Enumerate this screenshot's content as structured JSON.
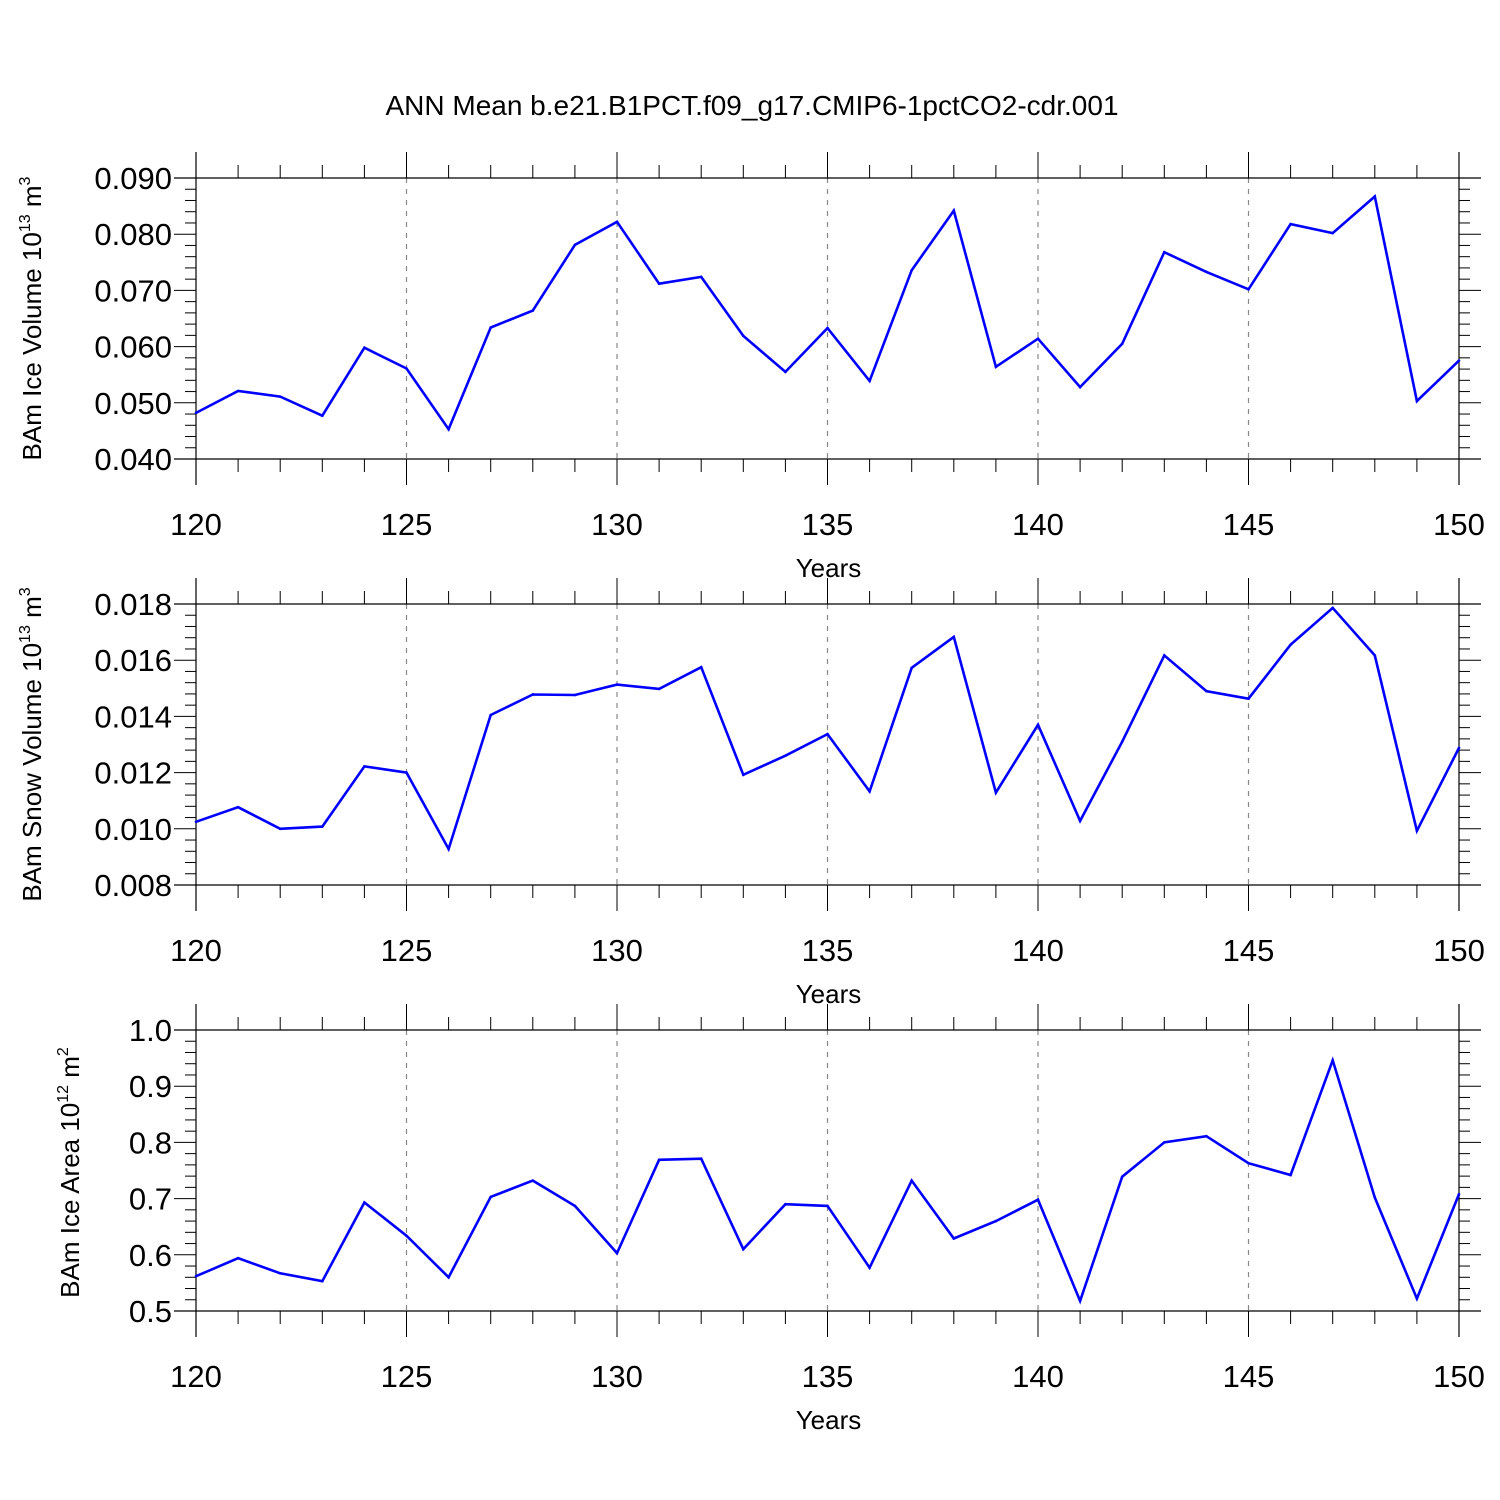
{
  "title": "ANN Mean b.e21.B1PCT.f09_g17.CMIP6-1pctCO2-cdr.001",
  "colors": {
    "series": "#0000ff",
    "axis": "#000000",
    "grid": "#888888"
  },
  "chart_data": [
    {
      "type": "line",
      "ylabel": "BAm Ice Volume 10",
      "ylabel_exp": "13",
      "ylabel_unit": " m",
      "ylabel_unit_exp": "3",
      "xlabel": "Years",
      "xlim": [
        120,
        150
      ],
      "ylim": [
        0.04,
        0.09
      ],
      "x_ticks": [
        120,
        125,
        130,
        135,
        140,
        145,
        150
      ],
      "y_ticks": [
        "0.040",
        "0.050",
        "0.060",
        "0.070",
        "0.080",
        "0.090"
      ],
      "y_tick_values": [
        0.04,
        0.05,
        0.06,
        0.07,
        0.08,
        0.09
      ],
      "y_minor_step": 0.002,
      "x_minor_step": 1,
      "grid": "x-major dashed",
      "x": [
        120,
        121,
        122,
        123,
        124,
        125,
        126,
        127,
        128,
        129,
        130,
        131,
        132,
        133,
        134,
        135,
        136,
        137,
        138,
        139,
        140,
        141,
        142,
        143,
        144,
        145,
        146,
        147,
        148,
        149,
        150
      ],
      "y": [
        0.0482,
        0.0521,
        0.0511,
        0.0477,
        0.0598,
        0.0561,
        0.0453,
        0.0634,
        0.0664,
        0.0781,
        0.0822,
        0.0712,
        0.0724,
        0.0619,
        0.0555,
        0.0633,
        0.0539,
        0.0736,
        0.0842,
        0.0564,
        0.0614,
        0.0528,
        0.0605,
        0.0768,
        0.0733,
        0.0702,
        0.0818,
        0.0802,
        0.0867,
        0.0503,
        0.0575
      ]
    },
    {
      "type": "line",
      "ylabel": "BAm Snow Volume 10",
      "ylabel_exp": "13",
      "ylabel_unit": " m",
      "ylabel_unit_exp": "3",
      "xlabel": "Years",
      "xlim": [
        120,
        150
      ],
      "ylim": [
        0.008,
        0.018
      ],
      "x_ticks": [
        120,
        125,
        130,
        135,
        140,
        145,
        150
      ],
      "y_ticks": [
        "0.008",
        "0.010",
        "0.012",
        "0.014",
        "0.016",
        "0.018"
      ],
      "y_tick_values": [
        0.008,
        0.01,
        0.012,
        0.014,
        0.016,
        0.018
      ],
      "y_minor_step": 0.0004,
      "x_minor_step": 1,
      "grid": "x-major dashed",
      "x": [
        120,
        121,
        122,
        123,
        124,
        125,
        126,
        127,
        128,
        129,
        130,
        131,
        132,
        133,
        134,
        135,
        136,
        137,
        138,
        139,
        140,
        141,
        142,
        143,
        144,
        145,
        146,
        147,
        148,
        149,
        150
      ],
      "y": [
        0.01025,
        0.01077,
        0.01,
        0.01008,
        0.01222,
        0.012,
        0.00928,
        0.01405,
        0.01478,
        0.01476,
        0.01513,
        0.01498,
        0.01575,
        0.01192,
        0.0126,
        0.01337,
        0.01133,
        0.01573,
        0.01683,
        0.01129,
        0.0137,
        0.01028,
        0.0131,
        0.01617,
        0.0149,
        0.01463,
        0.01655,
        0.01786,
        0.01617,
        0.00993,
        0.01288
      ]
    },
    {
      "type": "line",
      "ylabel": "BAm Ice Area 10",
      "ylabel_exp": "12",
      "ylabel_unit": " m",
      "ylabel_unit_exp": "2",
      "xlabel": "Years",
      "xlim": [
        120,
        150
      ],
      "ylim": [
        0.5,
        1.0
      ],
      "x_ticks": [
        120,
        125,
        130,
        135,
        140,
        145,
        150
      ],
      "y_ticks": [
        "0.5",
        "0.6",
        "0.7",
        "0.8",
        "0.9",
        "1.0"
      ],
      "y_tick_values": [
        0.5,
        0.6,
        0.7,
        0.8,
        0.9,
        1.0
      ],
      "y_minor_step": 0.02,
      "x_minor_step": 1,
      "grid": "x-major dashed",
      "x": [
        120,
        121,
        122,
        123,
        124,
        125,
        126,
        127,
        128,
        129,
        130,
        131,
        132,
        133,
        134,
        135,
        136,
        137,
        138,
        139,
        140,
        141,
        142,
        143,
        144,
        145,
        146,
        147,
        148,
        149,
        150
      ],
      "y": [
        0.562,
        0.594,
        0.567,
        0.553,
        0.693,
        0.634,
        0.56,
        0.703,
        0.732,
        0.687,
        0.603,
        0.769,
        0.771,
        0.61,
        0.69,
        0.687,
        0.577,
        0.732,
        0.629,
        0.66,
        0.698,
        0.518,
        0.739,
        0.8,
        0.811,
        0.763,
        0.742,
        0.946,
        0.702,
        0.522,
        0.708
      ]
    }
  ]
}
